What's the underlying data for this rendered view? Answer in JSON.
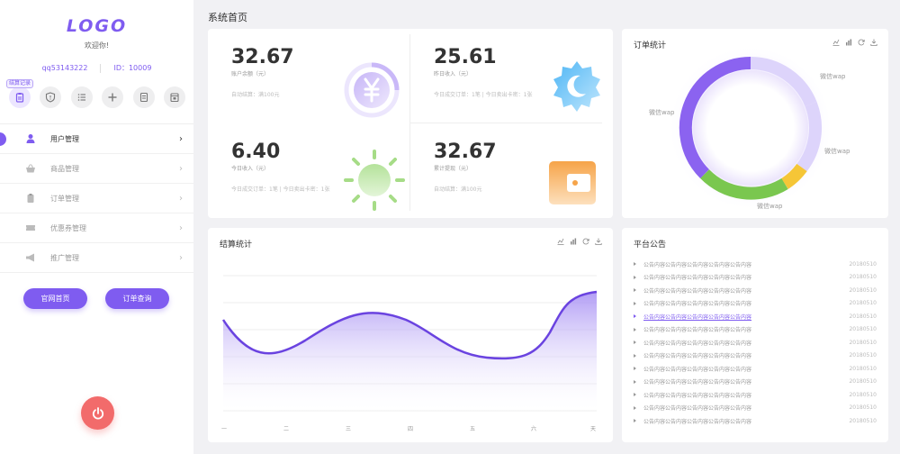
{
  "sidebar": {
    "logo": "LOGO",
    "welcome": "欢迎你!",
    "qq": "qq53143222",
    "user_id": "ID：10009",
    "quick_tag": "结算记录",
    "quick_icons": [
      "clipboard-icon",
      "shield-icon",
      "list-icon",
      "plus-icon",
      "document-icon",
      "calendar-icon"
    ],
    "menu": [
      {
        "label": "用户管理",
        "icon": "user-icon"
      },
      {
        "label": "商品管理",
        "icon": "basket-icon"
      },
      {
        "label": "订单管理",
        "icon": "clipboard-icon"
      },
      {
        "label": "优惠券管理",
        "icon": "ticket-icon"
      },
      {
        "label": "推广管理",
        "icon": "megaphone-icon"
      }
    ],
    "chevron": "›",
    "buttons": {
      "home": "官网首页",
      "order_query": "订单查询"
    },
    "power_icon": "power-icon"
  },
  "header": {
    "title": "系统首页"
  },
  "stats": [
    {
      "value": "32.67",
      "label": "账户余额（元）",
      "desc": "自动结算：满100元",
      "icon": "yen-icon"
    },
    {
      "value": "25.61",
      "label": "昨日收入（元）",
      "desc": "今日成交订单：1笔 | 今日卖出卡密：1张",
      "icon": "moon-icon"
    },
    {
      "value": "6.40",
      "label": "今日收入（元）",
      "desc": "今日成交订单：1笔 | 今日卖出卡密：1张",
      "icon": "sun-icon"
    },
    {
      "value": "32.67",
      "label": "累计提现（元）",
      "desc": "自动结算：满100元",
      "icon": "wallet-icon"
    }
  ],
  "orders": {
    "title": "订单统计",
    "labels": [
      "微信wap",
      "微信wap",
      "微信wap",
      "微信wap"
    ],
    "colors": {
      "purple": "#8b63f0",
      "light": "#ddd4fb",
      "yellow": "#f5c637",
      "green": "#7ac74f"
    }
  },
  "settlement": {
    "title": "结算统计",
    "x_labels": [
      "一",
      "二",
      "三",
      "四",
      "五",
      "六",
      "天"
    ]
  },
  "notice": {
    "title": "平台公告",
    "items": [
      {
        "text": "公告内容公告内容公告内容公告内容公告内容",
        "date": "20180510"
      },
      {
        "text": "公告内容公告内容公告内容公告内容公告内容",
        "date": "20180510"
      },
      {
        "text": "公告内容公告内容公告内容公告内容公告内容",
        "date": "20180510"
      },
      {
        "text": "公告内容公告内容公告内容公告内容公告内容",
        "date": "20180510"
      },
      {
        "text": "公告内容公告内容公告内容公告内容公告内容",
        "date": "20180510"
      },
      {
        "text": "公告内容公告内容公告内容公告内容公告内容",
        "date": "20180510"
      },
      {
        "text": "公告内容公告内容公告内容公告内容公告内容",
        "date": "20180510"
      },
      {
        "text": "公告内容公告内容公告内容公告内容公告内容",
        "date": "20180510"
      },
      {
        "text": "公告内容公告内容公告内容公告内容公告内容",
        "date": "20180510"
      },
      {
        "text": "公告内容公告内容公告内容公告内容公告内容",
        "date": "20180510"
      },
      {
        "text": "公告内容公告内容公告内容公告内容公告内容",
        "date": "20180510"
      },
      {
        "text": "公告内容公告内容公告内容公告内容公告内容",
        "date": "20180510"
      },
      {
        "text": "公告内容公告内容公告内容公告内容公告内容",
        "date": "20180510"
      }
    ]
  },
  "accent": "#7f5cf0"
}
